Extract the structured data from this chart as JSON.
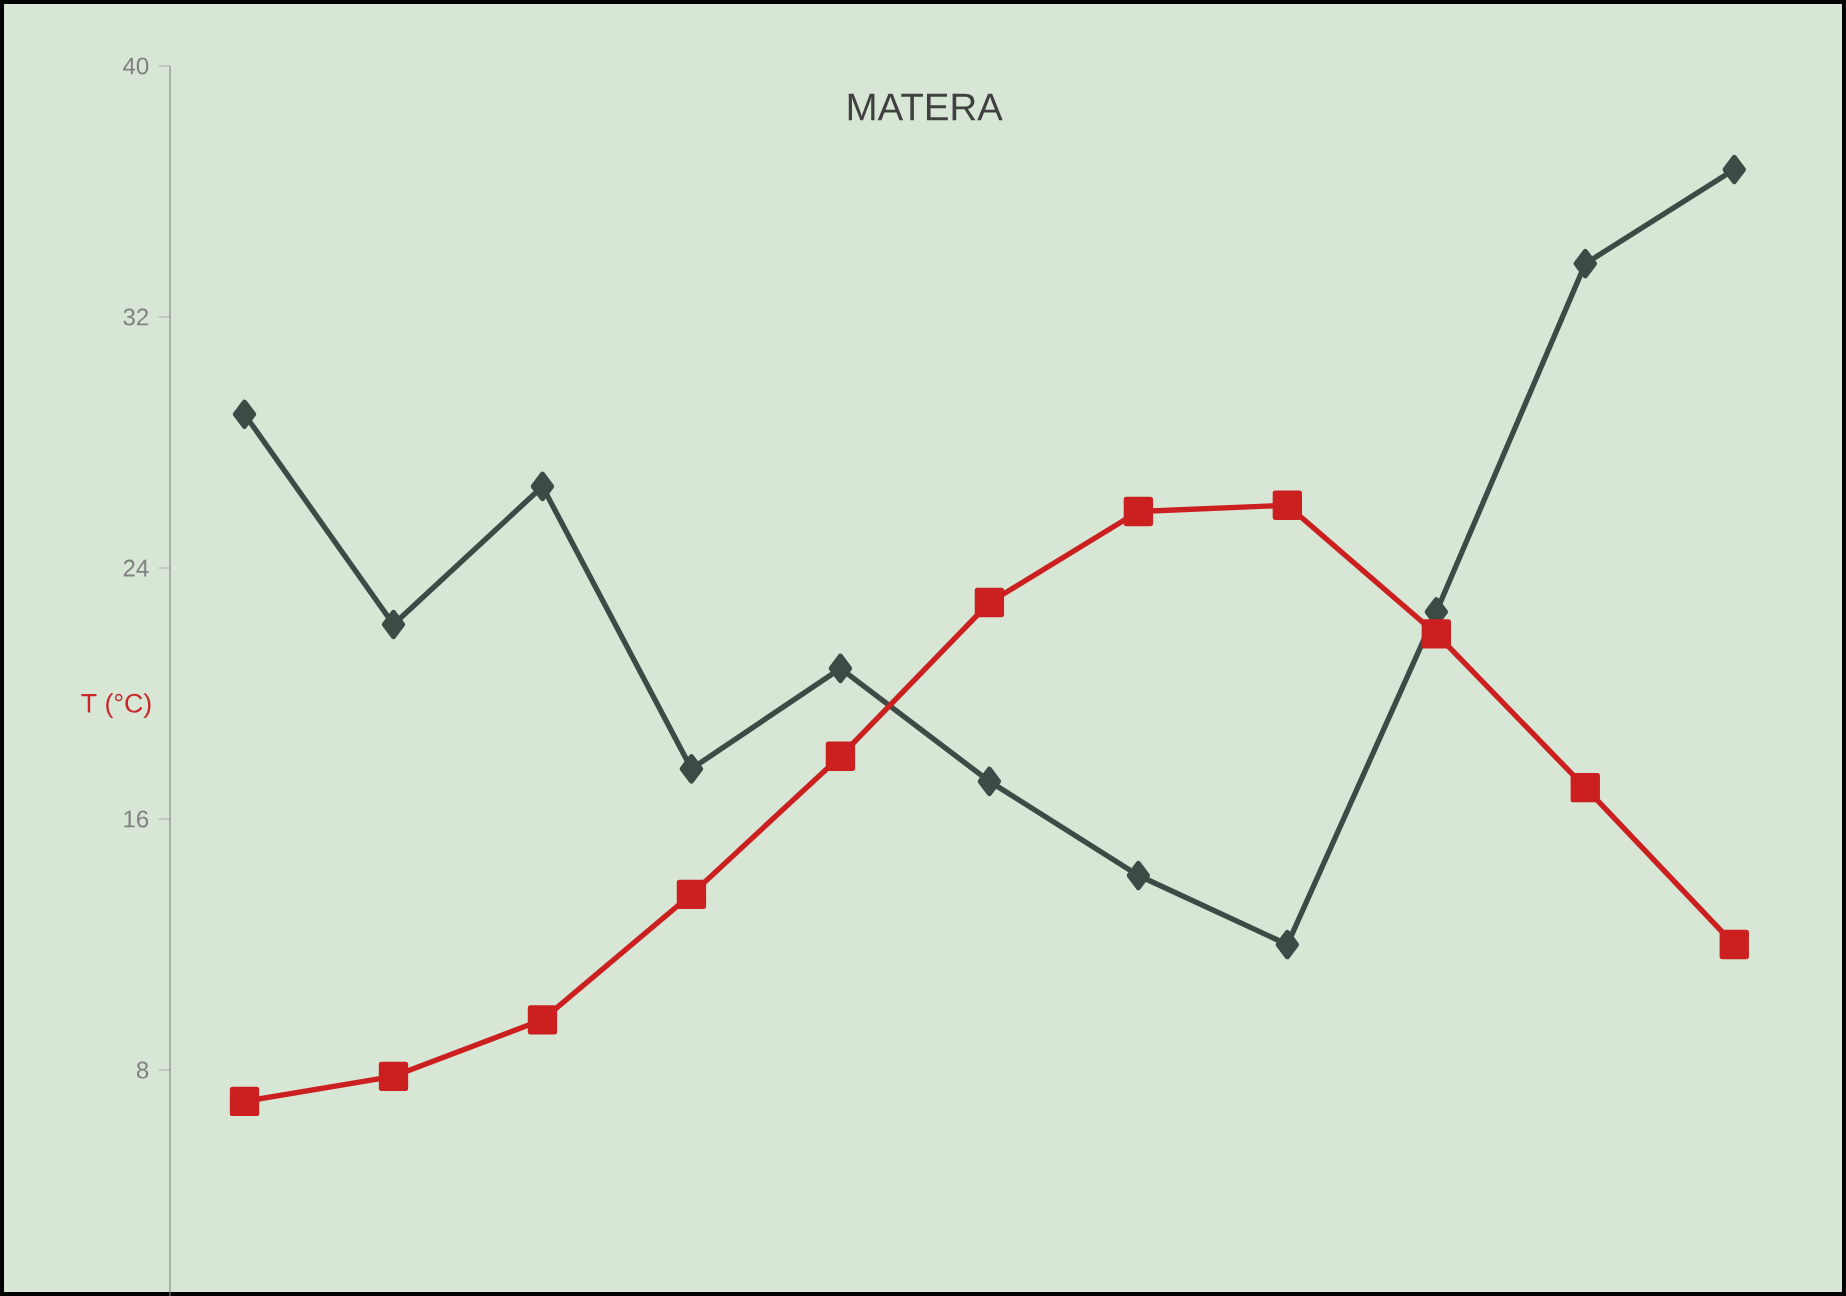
{
  "chart_data": {
    "type": "line",
    "title": "MATERA",
    "ylabel": "T (°C)",
    "categories": [
      null,
      null,
      null,
      null,
      null,
      null,
      null,
      null,
      null,
      null,
      null
    ],
    "series": [
      {
        "color": "#3d4a45",
        "marker": "diamond",
        "values": [
          28.9,
          22.2,
          26.6,
          17.6,
          20.8,
          17.2,
          14.2,
          12.0,
          22.6,
          33.7,
          36.7
        ]
      },
      {
        "color": "#cc2020",
        "marker": "square",
        "values": [
          7.0,
          7.8,
          9.6,
          13.6,
          18.0,
          22.9,
          25.8,
          26.0,
          21.9,
          17.0,
          12.0
        ]
      }
    ],
    "ylim": [
      0.8,
      40
    ],
    "yticks": [
      8,
      16,
      24,
      32,
      40
    ],
    "grid": false
  }
}
